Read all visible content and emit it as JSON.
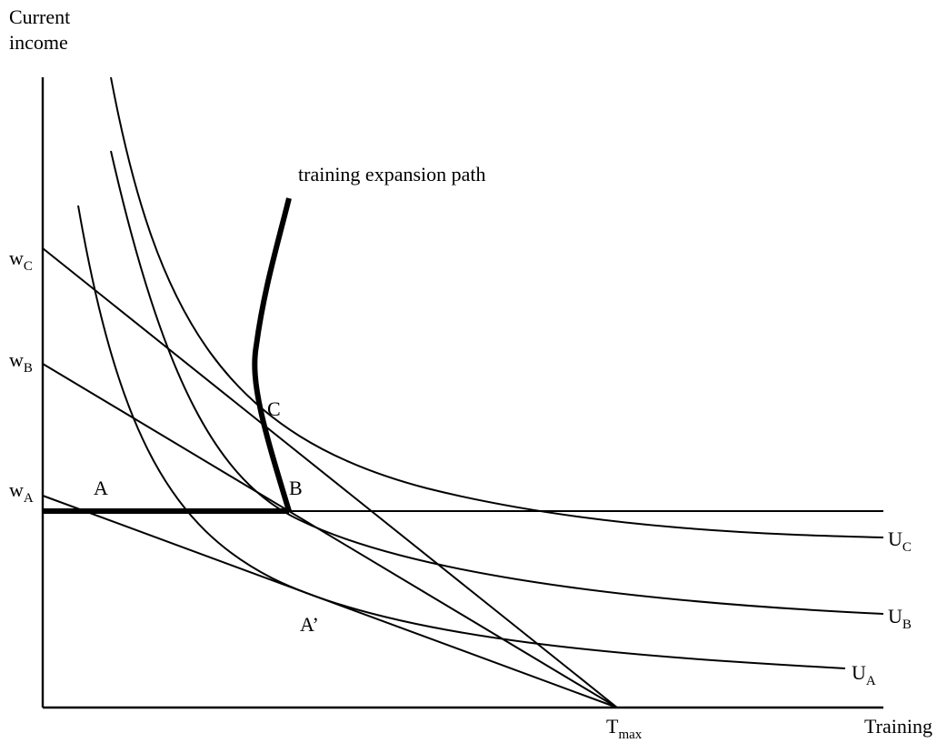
{
  "axes": {
    "y_label_line1": "Current",
    "y_label_line2": "income",
    "x_label": "Training"
  },
  "wage_labels": {
    "wC": {
      "main": "w",
      "sub": "C"
    },
    "wB": {
      "main": "w",
      "sub": "B"
    },
    "wA": {
      "main": "w",
      "sub": "A"
    }
  },
  "t_max": {
    "main": "T",
    "sub": "max"
  },
  "points": {
    "A": "A",
    "B": "B",
    "C": "C",
    "A_prime": "A’"
  },
  "path_label": "training expansion path",
  "curve_labels": {
    "UC": {
      "main": "U",
      "sub": "C"
    },
    "UB": {
      "main": "U",
      "sub": "B"
    },
    "UA": {
      "main": "U",
      "sub": "A"
    }
  }
}
